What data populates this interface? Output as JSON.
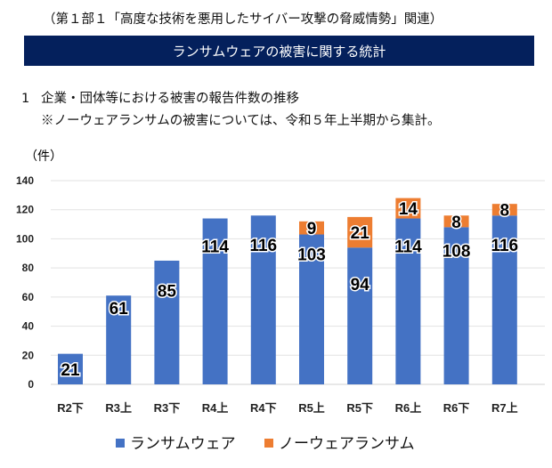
{
  "header": {
    "context": "（第１部１「高度な技術を悪用したサイバー攻撃の脅威情勢」関連）"
  },
  "banner": {
    "title": "ランサムウェアの被害に関する統計"
  },
  "section": {
    "number": "1",
    "title": "企業・団体等における被害の報告件数の推移",
    "note": "※ノーウェアランサムの被害については、令和５年上半期から集計。"
  },
  "colors": {
    "ransomware": "#4472c4",
    "noware": "#ed7d31",
    "banner": "#04205c"
  },
  "chart_data": {
    "type": "bar",
    "stacked": true,
    "title": "",
    "xlabel": "",
    "ylabel": "（件）",
    "ylim": [
      0,
      140
    ],
    "yticks": [
      0,
      20,
      40,
      60,
      80,
      100,
      120,
      140
    ],
    "grid": true,
    "legend": "bottom",
    "categories": [
      "R2下",
      "R3上",
      "R3下",
      "R4上",
      "R4下",
      "R5上",
      "R5下",
      "R6上",
      "R6下",
      "R7上"
    ],
    "series": [
      {
        "name": "ランサムウェア",
        "values": [
          21,
          61,
          85,
          114,
          116,
          103,
          94,
          114,
          108,
          116
        ]
      },
      {
        "name": "ノーウェアランサム",
        "values": [
          null,
          null,
          null,
          null,
          null,
          9,
          21,
          14,
          8,
          8
        ]
      }
    ]
  }
}
